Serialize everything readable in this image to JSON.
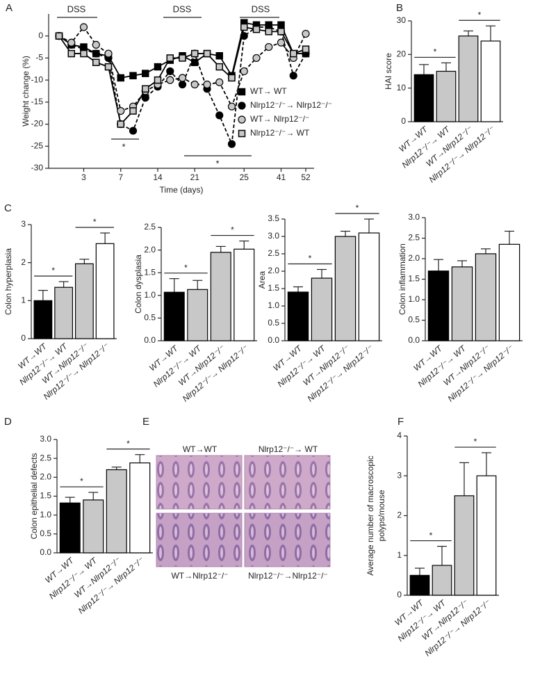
{
  "chart_data": [
    {
      "type": "line",
      "panel": "A",
      "ylabel": "Weight change (%)",
      "xlabel": "Time (days)",
      "categories": [
        null,
        null,
        "3",
        null,
        null,
        "7",
        null,
        null,
        "14",
        null,
        null,
        "21",
        null,
        null,
        null,
        "25",
        null,
        null,
        "41",
        null,
        "52"
      ],
      "ylim": [
        -30,
        5
      ],
      "yticks": [
        0,
        -5,
        -10,
        -15,
        -20,
        -25,
        -30
      ],
      "annotations": [
        "DSS",
        "DSS",
        "DSS",
        "*",
        "*"
      ],
      "series": [
        {
          "name": "WT→ WT",
          "color": "#000000",
          "marker": "square",
          "dash": false,
          "values": [
            0,
            -2,
            -2.5,
            -4,
            -4.5,
            -9.5,
            -9,
            -8.5,
            -7,
            -5.5,
            -4.5,
            -6,
            -4,
            -4.5,
            -9,
            3,
            2.5,
            2.5,
            2.5,
            -4,
            -4
          ]
        },
        {
          "name": "Nlrp12⁻/⁻→ Nlrp12⁻/⁻",
          "color": "#000000",
          "marker": "circle",
          "dash": true,
          "values": [
            0,
            -2,
            -3,
            -4,
            -5,
            -20,
            -21.5,
            -14,
            -11.5,
            -8,
            -11,
            -4,
            -12,
            -18,
            -24.5,
            0,
            2,
            2,
            1,
            -9,
            -4
          ]
        },
        {
          "name": "WT→ Nlrp12⁻/⁻",
          "color": "#c8c8c8",
          "marker": "circle",
          "dash": true,
          "values": [
            0,
            -1.5,
            2,
            -2,
            -4,
            -17,
            -16,
            -12.5,
            -11,
            -10,
            -9.5,
            -11,
            -11,
            -10.5,
            -16,
            -8,
            -5,
            -2.5,
            -1.5,
            -5,
            0.5
          ]
        },
        {
          "name": "Nlrp12⁻/⁻→ WT",
          "color": "#c8c8c8",
          "marker": "square",
          "dash": false,
          "values": [
            0,
            -4,
            -4,
            -6,
            -7,
            -20,
            -17,
            -12,
            -10,
            -5,
            -5,
            -4,
            -4,
            -7,
            -9.5,
            2,
            1.5,
            1,
            1,
            -4,
            -3
          ]
        }
      ]
    },
    {
      "type": "bar",
      "panel": "B",
      "ylabel": "HAI score",
      "categories": [
        "WT→WT",
        "Nlrp12⁻/⁻→ WT",
        "WT→Nlrp12⁻/⁻",
        "Nlrp12⁻/⁻→ Nlrp12⁻/⁻"
      ],
      "values": [
        14,
        15,
        25.5,
        24
      ],
      "errors": [
        3,
        2.5,
        1.5,
        4.5
      ],
      "colors": [
        "#000000",
        "#c8c8c8",
        "#c8c8c8",
        "#ffffff"
      ],
      "ylim": [
        0,
        30
      ],
      "yticks": [
        0,
        10,
        20,
        30
      ],
      "brackets": [
        {
          "between": [
            0,
            1
          ],
          "label": "*"
        },
        {
          "between": [
            2,
            3
          ],
          "label": "*"
        }
      ]
    },
    {
      "type": "bar",
      "panel": "C",
      "ylabel": "Colon hyperplasia",
      "categories": [
        "WT→WT",
        "Nlrp12⁻/⁻→ WT",
        "WT→Nlrp12⁻/⁻",
        "Nlrp12⁻/⁻→ Nlrp12⁻/⁻"
      ],
      "values": [
        1.0,
        1.35,
        1.97,
        2.5
      ],
      "errors": [
        0.27,
        0.15,
        0.12,
        0.28
      ],
      "colors": [
        "#000000",
        "#c8c8c8",
        "#c8c8c8",
        "#ffffff"
      ],
      "ylim": [
        0,
        3
      ],
      "yticks": [
        0,
        1,
        2,
        3
      ],
      "brackets": [
        {
          "between": [
            0,
            1
          ],
          "label": "*"
        },
        {
          "between": [
            2,
            3
          ],
          "label": "*"
        }
      ]
    },
    {
      "type": "bar",
      "ylabel": "Colon dysplasia",
      "categories": [
        "WT→WT",
        "Nlrp12⁻/⁻→ WT",
        "WT→Nlrp12⁻/⁻",
        "Nlrp12⁻/⁻→ Nlrp12⁻/⁻"
      ],
      "values": [
        1.07,
        1.13,
        1.95,
        2.02
      ],
      "errors": [
        0.3,
        0.2,
        0.13,
        0.18
      ],
      "colors": [
        "#000000",
        "#c8c8c8",
        "#c8c8c8",
        "#ffffff"
      ],
      "ylim": [
        0,
        2.5
      ],
      "yticks": [
        {
          "value": 0,
          "label": "0.0"
        },
        0.5,
        {
          "value": 1,
          "label": "1.0"
        },
        1.5,
        {
          "value": 2,
          "label": "2.0"
        },
        2.5
      ],
      "brackets": [
        {
          "between": [
            0,
            1
          ],
          "label": "*"
        },
        {
          "between": [
            2,
            3
          ],
          "label": "*"
        }
      ]
    },
    {
      "type": "bar",
      "ylabel": "Area",
      "categories": [
        "WT→WT",
        "Nlrp12⁻/⁻→ WT",
        "WT→Nlrp12⁻/⁻",
        "Nlrp12⁻/⁻→ Nlrp12⁻/⁻"
      ],
      "values": [
        1.4,
        1.8,
        3.0,
        3.1
      ],
      "errors": [
        0.15,
        0.25,
        0.15,
        0.4
      ],
      "colors": [
        "#000000",
        "#c8c8c8",
        "#c8c8c8",
        "#ffffff"
      ],
      "ylim": [
        0,
        3.5
      ],
      "yticks": [
        {
          "value": 0,
          "label": "0.0"
        },
        0.5,
        {
          "value": 1,
          "label": "1.0"
        },
        1.5,
        {
          "value": 2,
          "label": "2.0"
        },
        2.5,
        {
          "value": 3,
          "label": "3.0"
        },
        3.5
      ],
      "brackets": [
        {
          "between": [
            0,
            1
          ],
          "label": "*"
        },
        {
          "between": [
            2,
            3
          ],
          "label": "*"
        }
      ]
    },
    {
      "type": "bar",
      "ylabel": "Colon inflammation",
      "categories": [
        "WT→WT",
        "Nlrp12⁻/⁻→ WT",
        "WT→Nlrp12⁻/⁻",
        "Nlrp12⁻/⁻→ Nlrp12⁻/⁻"
      ],
      "values": [
        1.7,
        1.8,
        2.12,
        2.35
      ],
      "errors": [
        0.28,
        0.15,
        0.12,
        0.32
      ],
      "colors": [
        "#000000",
        "#c8c8c8",
        "#c8c8c8",
        "#ffffff"
      ],
      "ylim": [
        0,
        3
      ],
      "yticks": [
        {
          "value": 0,
          "label": "0.0"
        },
        0.5,
        {
          "value": 1,
          "label": "1.0"
        },
        1.5,
        {
          "value": 2,
          "label": "2.0"
        },
        2.5,
        {
          "value": 3,
          "label": "3.0"
        }
      ],
      "brackets": []
    },
    {
      "type": "bar",
      "panel": "D",
      "ylabel": "Colon epithelial defects",
      "categories": [
        "WT→WT",
        "Nlrp12⁻/⁻→ WT",
        "WT→Nlrp12⁻/⁻",
        "Nlrp12⁻/⁻→ Nlrp12⁻/⁻"
      ],
      "values": [
        1.32,
        1.4,
        2.2,
        2.38
      ],
      "errors": [
        0.15,
        0.2,
        0.07,
        0.22
      ],
      "colors": [
        "#000000",
        "#c8c8c8",
        "#c8c8c8",
        "#ffffff"
      ],
      "ylim": [
        0,
        3
      ],
      "yticks": [
        {
          "value": 0,
          "label": "0.0"
        },
        0.5,
        {
          "value": 1,
          "label": "1.0"
        },
        1.5,
        {
          "value": 2,
          "label": "2.0"
        },
        2.5,
        {
          "value": 3,
          "label": "3.0"
        }
      ],
      "brackets": [
        {
          "between": [
            0,
            1
          ],
          "label": "*"
        },
        {
          "between": [
            2,
            3
          ],
          "label": "*"
        }
      ]
    },
    {
      "type": "image",
      "panel": "E",
      "captions": [
        "WT→WT",
        "Nlrp12⁻/⁻→ WT",
        "WT→Nlrp12⁻/⁻",
        "Nlrp12⁻/⁻→Nlrp12⁻/⁻"
      ]
    },
    {
      "type": "bar",
      "panel": "F",
      "ylabel": [
        "Average number of macroscopic",
        "polyps/mouse"
      ],
      "categories": [
        "WT→WT",
        "Nlrp12⁻/⁻→ WT",
        "WT→Nlrp12⁻/⁻",
        "Nlrp12⁻/⁻→ Nlrp12⁻/⁻"
      ],
      "values": [
        0.5,
        0.75,
        2.5,
        3.0
      ],
      "errors": [
        0.18,
        0.48,
        0.83,
        0.58
      ],
      "colors": [
        "#000000",
        "#c8c8c8",
        "#c8c8c8",
        "#ffffff"
      ],
      "ylim": [
        0,
        4
      ],
      "yticks": [
        0,
        1,
        2,
        3,
        4
      ],
      "brackets": [
        {
          "between": [
            0,
            1
          ],
          "label": "*"
        },
        {
          "between": [
            2,
            3
          ],
          "label": "*"
        }
      ]
    }
  ]
}
